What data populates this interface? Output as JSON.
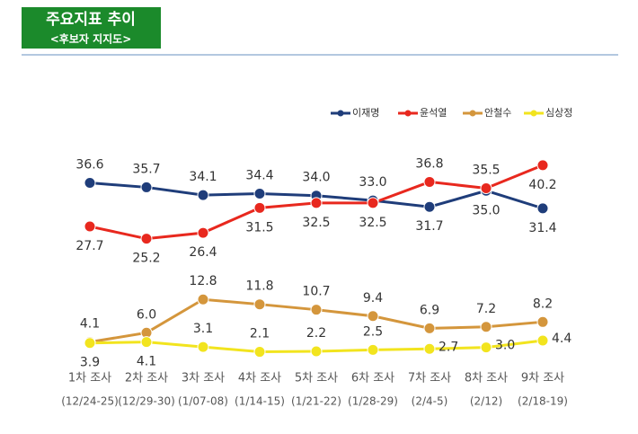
{
  "header": {
    "title": "주요지표 추이",
    "subtitle": "<후보자 지지도>"
  },
  "chart_data": {
    "type": "line",
    "categories": [
      "1차 조사",
      "2차 조사",
      "3차 조사",
      "4차 조사",
      "5차 조사",
      "6차 조사",
      "7차 조사",
      "8차 조사",
      "9차 조사"
    ],
    "periods": [
      "(12/24-25)",
      "(12/29-30)",
      "(1/07-08)",
      "(1/14-15)",
      "(1/21-22)",
      "(1/28-29)",
      "(2/4-5)",
      "(2/12)",
      "(2/18-19)"
    ],
    "series": [
      {
        "name": "이재명",
        "color": "#1f3d7a",
        "values": [
          36.6,
          35.7,
          34.1,
          34.4,
          34.0,
          33.0,
          31.7,
          35.0,
          31.4
        ],
        "value_labels": [
          "36.6",
          "35.7",
          "34.1",
          "34.4",
          "34.0",
          "33.0",
          "31.7",
          "35.0",
          "31.4"
        ]
      },
      {
        "name": "윤석열",
        "color": "#e8281e",
        "values": [
          27.7,
          25.2,
          26.4,
          31.5,
          32.5,
          32.5,
          36.8,
          35.5,
          40.2
        ],
        "value_labels": [
          "27.7",
          "25.2",
          "26.4",
          "31.5",
          "32.5",
          "32.5",
          "36.8",
          "35.5",
          "40.2"
        ]
      },
      {
        "name": "안철수",
        "color": "#d4963c",
        "values": [
          4.1,
          6.0,
          12.8,
          11.8,
          10.7,
          9.4,
          6.9,
          7.2,
          8.2
        ],
        "value_labels": [
          "4.1",
          "6.0",
          "12.8",
          "11.8",
          "10.7",
          "9.4",
          "6.9",
          "7.2",
          "8.2"
        ]
      },
      {
        "name": "심상정",
        "color": "#f2e41e",
        "values": [
          3.9,
          4.1,
          3.1,
          2.1,
          2.2,
          2.5,
          2.7,
          3.0,
          4.4
        ],
        "value_labels": [
          "3.9",
          "4.1",
          "3.1",
          "2.1",
          "2.2",
          "2.5",
          "2.7",
          "3.0",
          "4.4"
        ]
      }
    ]
  }
}
